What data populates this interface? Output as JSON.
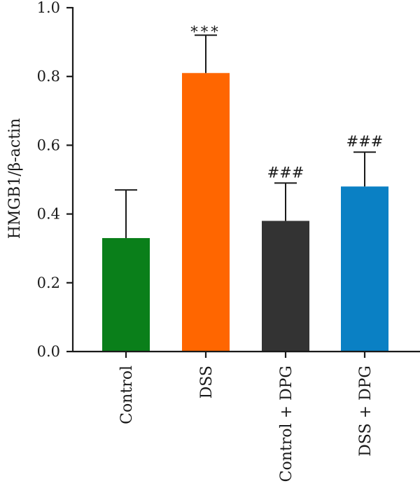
{
  "chart_data": {
    "type": "bar",
    "title": "",
    "xlabel": "",
    "ylabel": "HMGB1/β-actin",
    "ylim": [
      0,
      1.0
    ],
    "yticks": [
      0.0,
      0.2,
      0.4,
      0.6,
      0.8,
      1.0
    ],
    "ytick_labels": [
      "0.0",
      "0.2",
      "0.4",
      "0.6",
      "0.8",
      "1.0"
    ],
    "categories": [
      "Control",
      "DSS",
      "Control + DPG",
      "DSS + DPG"
    ],
    "values": [
      0.33,
      0.81,
      0.38,
      0.48
    ],
    "errors": [
      0.14,
      0.11,
      0.11,
      0.1
    ],
    "colors": [
      "#0a7f1a",
      "#ff6600",
      "#333333",
      "#0a80c4"
    ],
    "significance": [
      "",
      "***",
      "###",
      "###"
    ],
    "grid": false,
    "legend": "none"
  }
}
